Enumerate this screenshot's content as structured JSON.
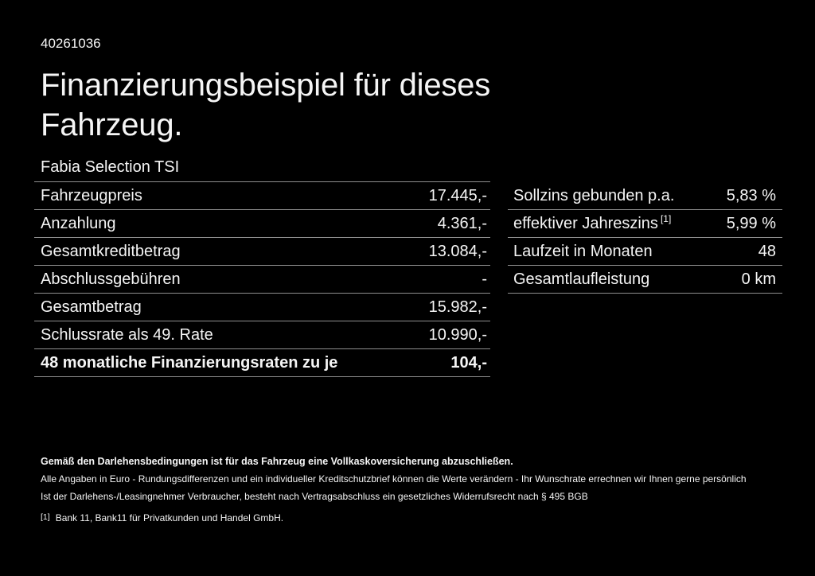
{
  "page": {
    "background": "#000000",
    "text_color": "#f5f5f5",
    "divider_color": "#8f8f8f"
  },
  "header": {
    "doc_number": "40261036",
    "title_line1": "Finanzierungsbeispiel für dieses",
    "title_line2": "Fahrzeug.",
    "vehicle_name": "Fabia Selection TSI"
  },
  "finance_table": {
    "rows": [
      {
        "label": "Fahrzeugpreis",
        "value": "17.445,-"
      },
      {
        "label": "Anzahlung",
        "value": "4.361,-"
      },
      {
        "label": "Gesamtkreditbetrag",
        "value": "13.084,-"
      },
      {
        "label": "Abschlussgebühren",
        "value": "-"
      },
      {
        "label": "Gesamtbetrag",
        "value": "15.982,-"
      },
      {
        "label": "Schlussrate als 49. Rate",
        "value": "10.990,-"
      },
      {
        "label": "48 monatliche Finanzierungsraten zu je",
        "value": "104,-"
      }
    ]
  },
  "rates_table": {
    "rows": [
      {
        "label": "Sollzins gebunden p.a.",
        "sup": "",
        "value": "5,83 %"
      },
      {
        "label": "effektiver Jahreszins",
        "sup": "[1]",
        "value": "5,99 %"
      },
      {
        "label": "Laufzeit in Monaten",
        "sup": "",
        "value": "48"
      },
      {
        "label": "Gesamtlaufleistung",
        "sup": "",
        "value": "0 km"
      }
    ]
  },
  "footer": {
    "insurance_note": "Gemäß den Darlehensbedingungen ist für das Fahrzeug eine Vollkaskoversicherung abzuschließen.",
    "disclaimer1": "Alle Angaben in Euro - Rundungsdifferenzen und ein individueller Kreditschutzbrief können die Werte verändern - Ihr Wunschrate errechnen wir Ihnen gerne persönlich",
    "disclaimer2": "Ist der Darlehens-/Leasingnehmer Verbraucher, besteht nach Vertragsabschluss ein gesetzliches Widerrufsrecht nach § 495 BGB",
    "footnote_marker": "[1]",
    "footnote_text": "Bank 11, Bank11 für Privatkunden und Handel GmbH."
  }
}
